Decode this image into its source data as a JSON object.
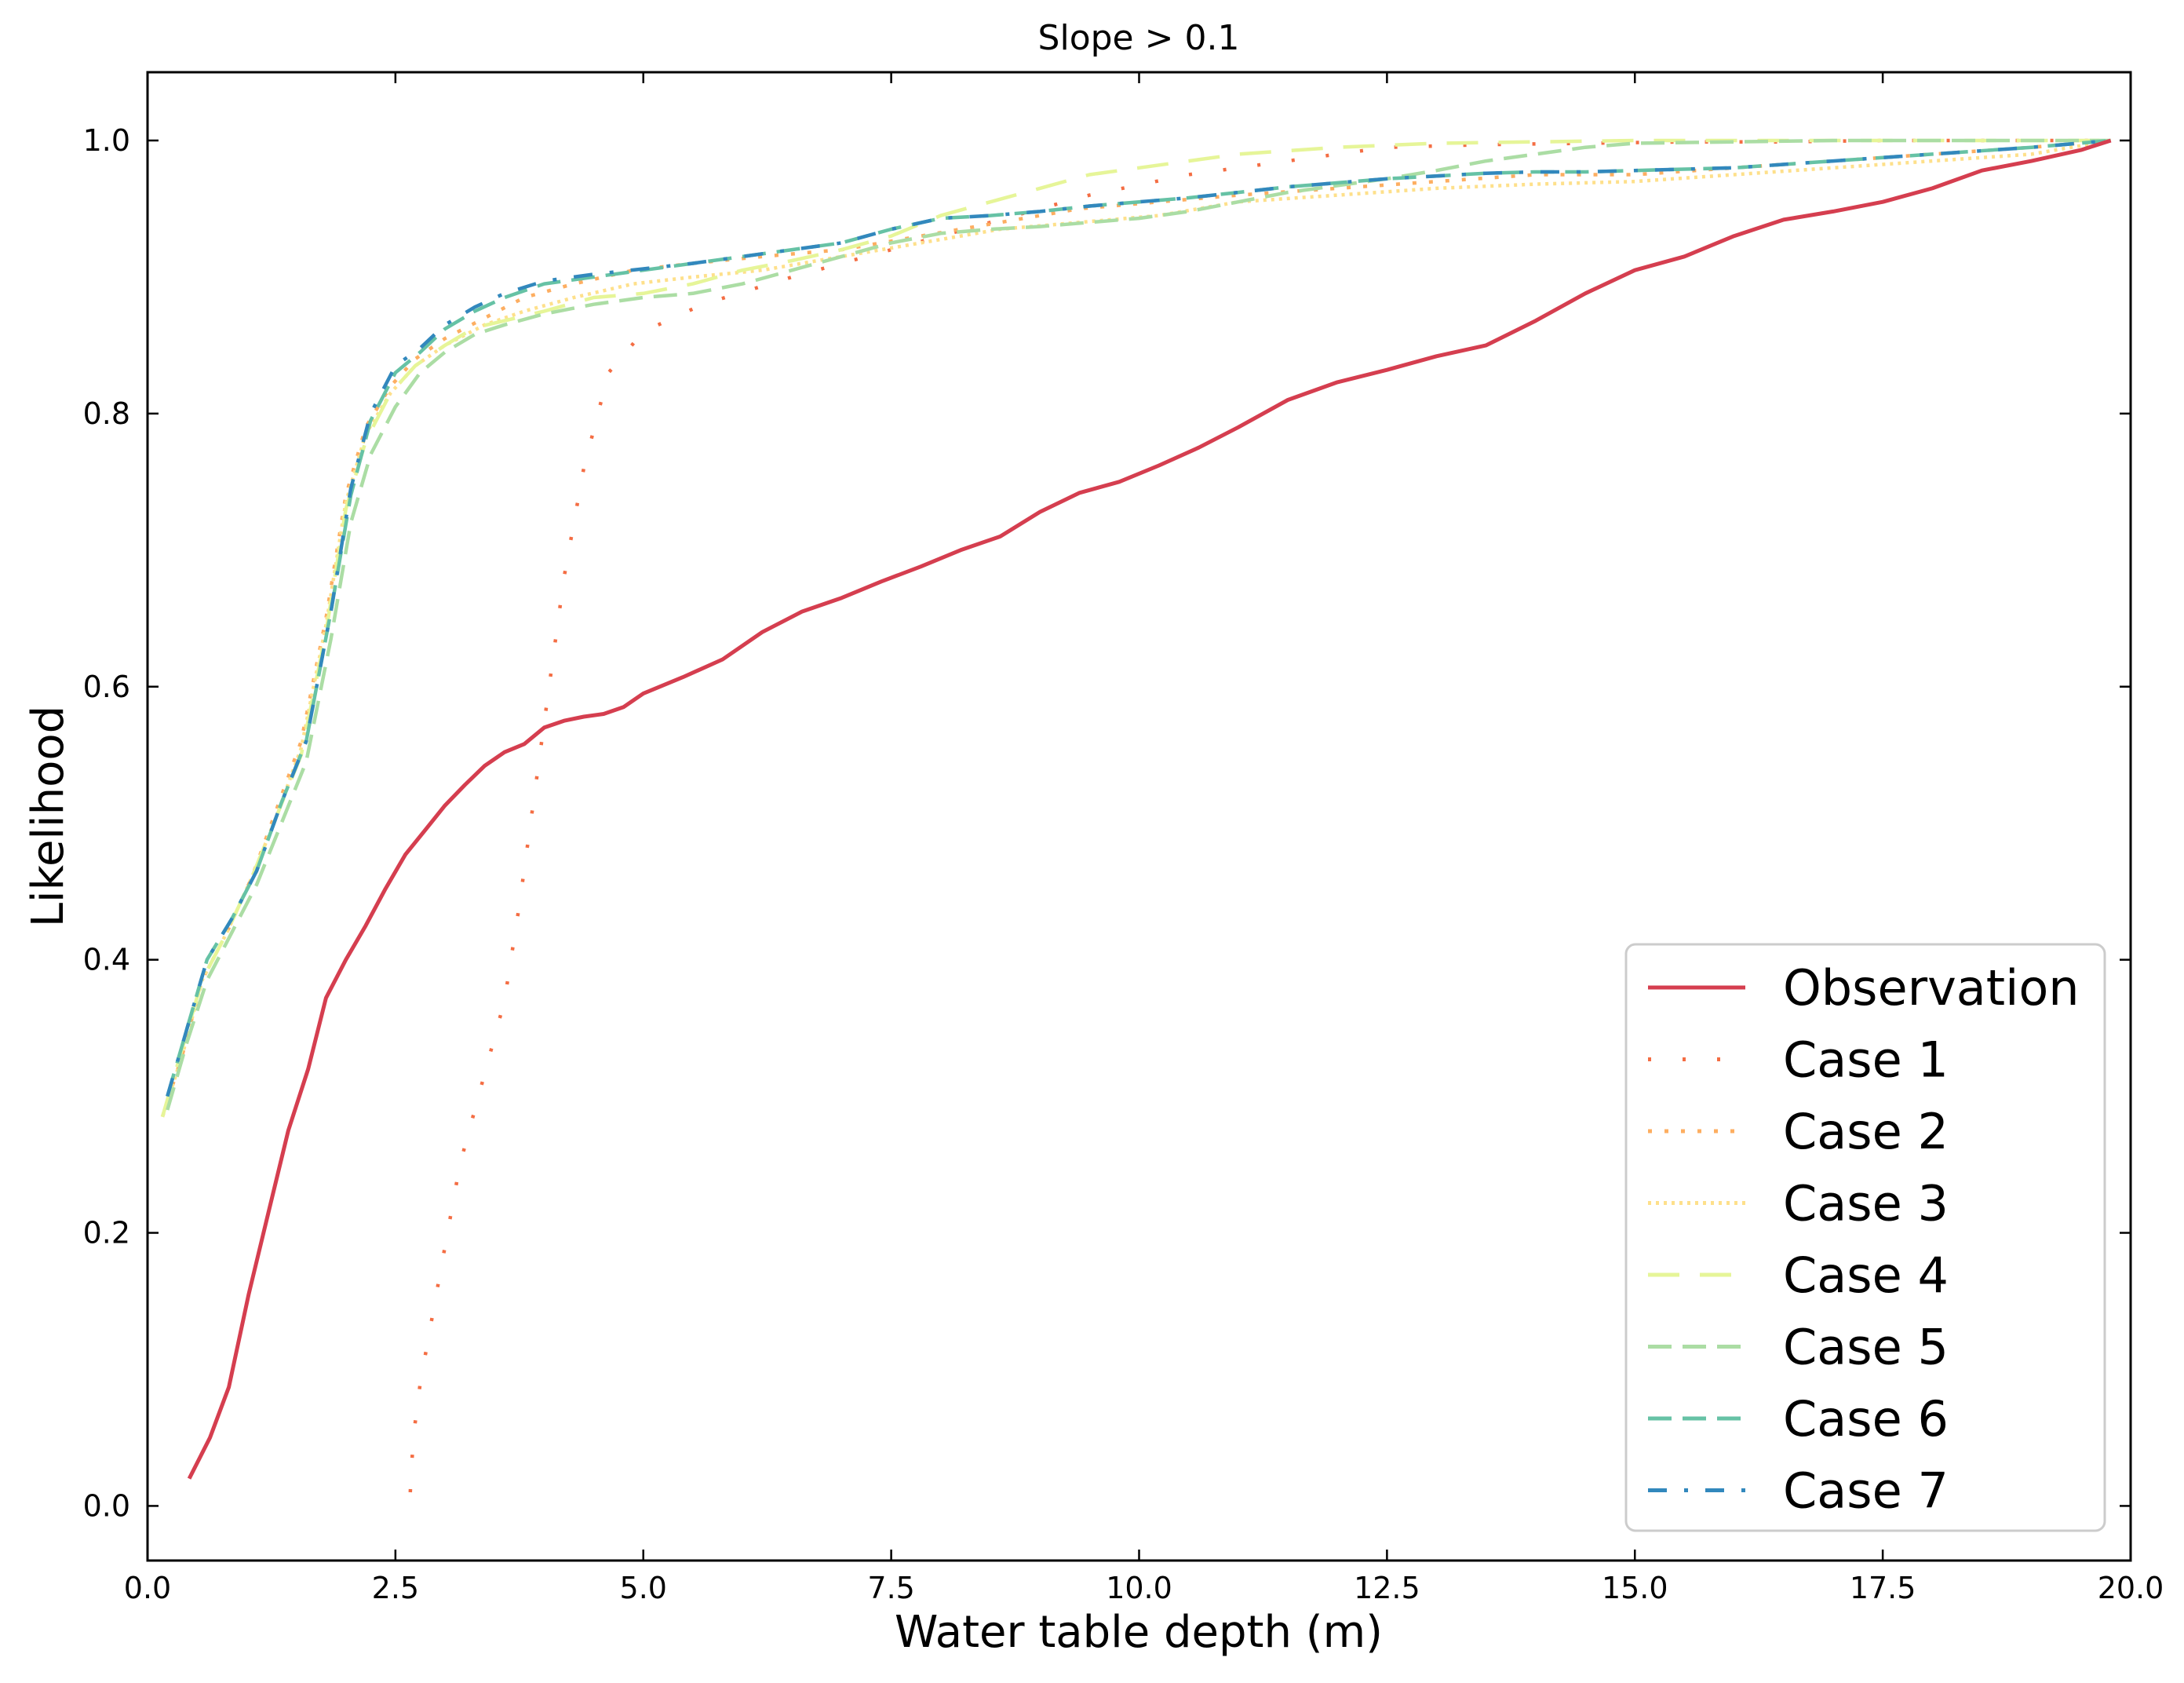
{
  "chart_data": {
    "type": "line",
    "title": "Slope > 0.1",
    "xlabel": "Water table depth (m)",
    "ylabel": "Likelihood",
    "xlim": [
      0,
      20
    ],
    "ylim": [
      -0.04,
      1.05
    ],
    "xticks": [
      "0.0",
      "2.5",
      "5.0",
      "7.5",
      "10.0",
      "12.5",
      "15.0",
      "17.5",
      "20.0"
    ],
    "yticks": [
      "0.0",
      "0.2",
      "0.4",
      "0.6",
      "0.8",
      "1.0"
    ],
    "legend_position": "lower-right",
    "grid": false,
    "series": [
      {
        "name": "Observation",
        "color": "#d53e4f",
        "dash": "solid",
        "x": [
          0.42,
          0.63,
          0.82,
          1.02,
          1.22,
          1.42,
          1.62,
          1.8,
          2.0,
          2.2,
          2.4,
          2.6,
          2.8,
          3.0,
          3.2,
          3.4,
          3.6,
          3.8,
          4.0,
          4.2,
          4.4,
          4.6,
          4.8,
          5.0,
          5.4,
          5.8,
          6.2,
          6.6,
          7.0,
          7.4,
          7.8,
          8.2,
          8.6,
          9.0,
          9.4,
          9.8,
          10.2,
          10.6,
          11.0,
          11.5,
          12.0,
          12.5,
          13.0,
          13.5,
          14.0,
          14.5,
          15.0,
          15.5,
          16.0,
          16.5,
          17.0,
          17.5,
          18.0,
          18.5,
          19.0,
          19.5,
          19.8
        ],
        "y": [
          0.02,
          0.05,
          0.087,
          0.155,
          0.215,
          0.275,
          0.32,
          0.372,
          0.4,
          0.425,
          0.452,
          0.477,
          0.495,
          0.513,
          0.528,
          0.542,
          0.552,
          0.558,
          0.57,
          0.575,
          0.578,
          0.58,
          0.585,
          0.595,
          0.607,
          0.62,
          0.64,
          0.655,
          0.665,
          0.677,
          0.688,
          0.7,
          0.71,
          0.728,
          0.742,
          0.75,
          0.762,
          0.775,
          0.79,
          0.81,
          0.823,
          0.832,
          0.842,
          0.85,
          0.868,
          0.888,
          0.905,
          0.915,
          0.93,
          0.942,
          0.948,
          0.955,
          0.965,
          0.978,
          0.985,
          0.993,
          1.0
        ]
      },
      {
        "name": "Case 1",
        "color": "#f46d43",
        "dash": "sparse-dot",
        "x": [
          2.65,
          2.68,
          2.75,
          2.85,
          2.95,
          3.05,
          3.15,
          3.3,
          3.45,
          3.6,
          3.75,
          3.9,
          4.05,
          4.2,
          4.4,
          4.65,
          5.0,
          5.6,
          6.5,
          7.5,
          8.5,
          9.5,
          10.5,
          11.5,
          12.5,
          13.5,
          14.5,
          15.5,
          16.5,
          17.5,
          18.5,
          19.8
        ],
        "y": [
          0.01,
          0.05,
          0.09,
          0.13,
          0.17,
          0.21,
          0.25,
          0.29,
          0.33,
          0.37,
          0.44,
          0.52,
          0.6,
          0.68,
          0.76,
          0.83,
          0.86,
          0.88,
          0.9,
          0.92,
          0.94,
          0.96,
          0.975,
          0.985,
          0.995,
          0.997,
          0.998,
          0.999,
          0.999,
          1.0,
          1.0,
          1.0
        ]
      },
      {
        "name": "Case 2",
        "color": "#fdae61",
        "dash": "dot",
        "x": [
          0.15,
          0.35,
          0.55,
          0.8,
          1.05,
          1.3,
          1.55,
          1.8,
          2.0,
          2.2,
          2.45,
          2.7,
          3.0,
          3.4,
          3.8,
          4.3,
          4.9,
          5.5,
          6.2,
          7.0,
          7.8,
          8.6,
          9.4,
          10.2,
          11.0,
          12.0,
          13.0,
          14.0,
          15.0,
          16.0,
          17.0,
          18.0,
          19.0,
          19.8
        ],
        "y": [
          0.285,
          0.33,
          0.385,
          0.42,
          0.46,
          0.51,
          0.56,
          0.65,
          0.74,
          0.79,
          0.82,
          0.84,
          0.855,
          0.87,
          0.885,
          0.895,
          0.905,
          0.91,
          0.915,
          0.92,
          0.93,
          0.94,
          0.95,
          0.955,
          0.96,
          0.965,
          0.97,
          0.975,
          0.975,
          0.98,
          0.985,
          0.99,
          0.995,
          1.0
        ]
      },
      {
        "name": "Case 3",
        "color": "#fee08b",
        "dash": "dense-dot",
        "x": [
          0.15,
          0.35,
          0.55,
          0.8,
          1.05,
          1.3,
          1.55,
          1.8,
          2.0,
          2.2,
          2.45,
          2.7,
          3.0,
          3.4,
          3.8,
          4.3,
          4.9,
          5.5,
          6.2,
          7.0,
          7.8,
          8.6,
          9.4,
          10.2,
          11.0,
          12.0,
          13.0,
          14.0,
          15.0,
          16.0,
          17.0,
          18.0,
          19.0,
          19.8
        ],
        "y": [
          0.285,
          0.33,
          0.385,
          0.42,
          0.46,
          0.505,
          0.555,
          0.645,
          0.735,
          0.785,
          0.815,
          0.835,
          0.85,
          0.865,
          0.875,
          0.885,
          0.895,
          0.9,
          0.905,
          0.915,
          0.925,
          0.935,
          0.94,
          0.945,
          0.955,
          0.96,
          0.965,
          0.968,
          0.97,
          0.975,
          0.98,
          0.985,
          0.99,
          1.0
        ]
      },
      {
        "name": "Case 4",
        "color": "#e6f598",
        "dash": "long-dash",
        "x": [
          0.15,
          0.35,
          0.55,
          0.8,
          1.05,
          1.3,
          1.55,
          1.8,
          2.0,
          2.2,
          2.45,
          2.7,
          3.0,
          3.3,
          3.6,
          4.0,
          4.5,
          5.0,
          5.5,
          6.0,
          6.5,
          7.0,
          7.5,
          8.0,
          8.5,
          9.0,
          9.5,
          10.0,
          10.5,
          11.0,
          12.0,
          13.0,
          14.0,
          15.0,
          16.0,
          17.0,
          18.0,
          19.0,
          19.8
        ],
        "y": [
          0.285,
          0.335,
          0.385,
          0.42,
          0.46,
          0.505,
          0.55,
          0.64,
          0.73,
          0.78,
          0.815,
          0.835,
          0.85,
          0.863,
          0.868,
          0.875,
          0.885,
          0.888,
          0.895,
          0.905,
          0.912,
          0.92,
          0.93,
          0.945,
          0.955,
          0.965,
          0.975,
          0.98,
          0.985,
          0.99,
          0.995,
          0.998,
          0.999,
          1.0,
          1.0,
          1.0,
          1.0,
          1.0,
          1.0
        ]
      },
      {
        "name": "Case 5",
        "color": "#abdda4",
        "dash": "dash",
        "x": [
          0.2,
          0.4,
          0.6,
          0.85,
          1.1,
          1.35,
          1.6,
          1.85,
          2.05,
          2.25,
          2.5,
          2.75,
          3.0,
          3.3,
          3.6,
          4.0,
          4.5,
          5.0,
          5.5,
          6.0,
          6.5,
          7.0,
          7.5,
          8.0,
          8.5,
          9.0,
          9.5,
          10.0,
          10.5,
          11.0,
          11.5,
          12.0,
          12.5,
          13.0,
          13.5,
          14.0,
          14.5,
          15.0,
          16.0,
          17.0,
          18.0,
          19.0,
          19.8
        ],
        "y": [
          0.29,
          0.34,
          0.385,
          0.42,
          0.455,
          0.5,
          0.545,
          0.635,
          0.72,
          0.77,
          0.805,
          0.83,
          0.845,
          0.858,
          0.865,
          0.873,
          0.88,
          0.885,
          0.888,
          0.895,
          0.905,
          0.915,
          0.925,
          0.932,
          0.935,
          0.937,
          0.94,
          0.943,
          0.948,
          0.955,
          0.962,
          0.967,
          0.972,
          0.978,
          0.985,
          0.99,
          0.995,
          0.998,
          0.999,
          1.0,
          1.0,
          1.0,
          1.0
        ]
      },
      {
        "name": "Case 6",
        "color": "#66c2a5",
        "dash": "dash",
        "x": [
          0.2,
          0.4,
          0.6,
          0.85,
          1.1,
          1.35,
          1.6,
          1.85,
          2.05,
          2.25,
          2.5,
          2.75,
          3.0,
          3.3,
          3.6,
          4.0,
          4.5,
          5.0,
          5.5,
          6.0,
          6.5,
          7.0,
          7.5,
          8.0,
          8.5,
          9.0,
          9.5,
          10.0,
          10.5,
          11.0,
          11.5,
          12.0,
          12.5,
          13.0,
          13.5,
          14.0,
          14.5,
          15.0,
          16.0,
          17.0,
          18.0,
          19.0,
          19.8
        ],
        "y": [
          0.3,
          0.35,
          0.4,
          0.43,
          0.465,
          0.515,
          0.56,
          0.655,
          0.74,
          0.795,
          0.83,
          0.845,
          0.862,
          0.875,
          0.885,
          0.895,
          0.9,
          0.905,
          0.91,
          0.915,
          0.92,
          0.925,
          0.935,
          0.943,
          0.945,
          0.948,
          0.952,
          0.955,
          0.958,
          0.962,
          0.966,
          0.969,
          0.972,
          0.974,
          0.976,
          0.977,
          0.977,
          0.978,
          0.98,
          0.985,
          0.99,
          0.995,
          1.0
        ]
      },
      {
        "name": "Case 7",
        "color": "#3288bd",
        "dash": "dash-dot",
        "x": [
          0.2,
          0.4,
          0.6,
          0.85,
          1.1,
          1.35,
          1.6,
          1.85,
          2.05,
          2.25,
          2.5,
          2.75,
          3.0,
          3.3,
          3.6,
          4.0,
          4.5,
          5.0,
          5.5,
          6.0,
          6.5,
          7.0,
          7.5,
          8.0,
          8.5,
          9.0,
          9.5,
          10.0,
          10.5,
          11.0,
          11.5,
          12.0,
          12.5,
          13.0,
          13.5,
          14.0,
          14.5,
          15.0,
          16.0,
          17.0,
          18.0,
          19.0,
          19.8
        ],
        "y": [
          0.3,
          0.35,
          0.4,
          0.43,
          0.465,
          0.515,
          0.56,
          0.655,
          0.745,
          0.8,
          0.835,
          0.848,
          0.865,
          0.878,
          0.888,
          0.897,
          0.902,
          0.906,
          0.91,
          0.915,
          0.92,
          0.925,
          0.935,
          0.943,
          0.945,
          0.948,
          0.952,
          0.955,
          0.958,
          0.962,
          0.966,
          0.969,
          0.972,
          0.974,
          0.976,
          0.977,
          0.977,
          0.978,
          0.98,
          0.985,
          0.99,
          0.995,
          1.0
        ]
      }
    ]
  }
}
